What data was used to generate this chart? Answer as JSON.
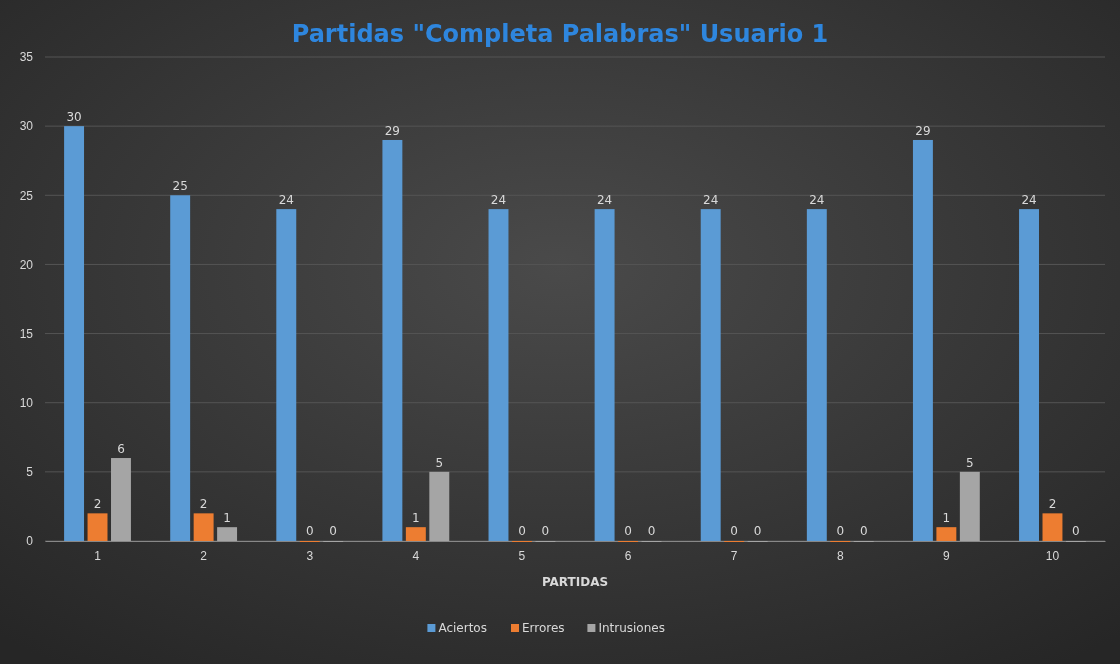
{
  "chart_data": {
    "type": "bar",
    "title": "Partidas \"Completa Palabras\" Usuario 1",
    "xlabel": "PARTIDAS",
    "categories": [
      "1",
      "2",
      "3",
      "4",
      "5",
      "6",
      "7",
      "8",
      "9",
      "10"
    ],
    "series": [
      {
        "name": "Aciertos",
        "color": "#5b9bd5",
        "values": [
          30,
          25,
          24,
          29,
          24,
          24,
          24,
          24,
          29,
          24
        ]
      },
      {
        "name": "Errores",
        "color": "#ed7d31",
        "values": [
          2,
          2,
          0,
          1,
          0,
          0,
          0,
          0,
          1,
          2
        ]
      },
      {
        "name": "Intrusiones",
        "color": "#a5a5a5",
        "values": [
          6,
          1,
          0,
          5,
          0,
          0,
          0,
          0,
          5,
          0
        ]
      }
    ],
    "ylim": [
      0,
      35
    ],
    "yticks": [
      0,
      5,
      10,
      15,
      20,
      25,
      30,
      35
    ],
    "grid": "y",
    "legend": "bottom",
    "data_labels": true
  }
}
